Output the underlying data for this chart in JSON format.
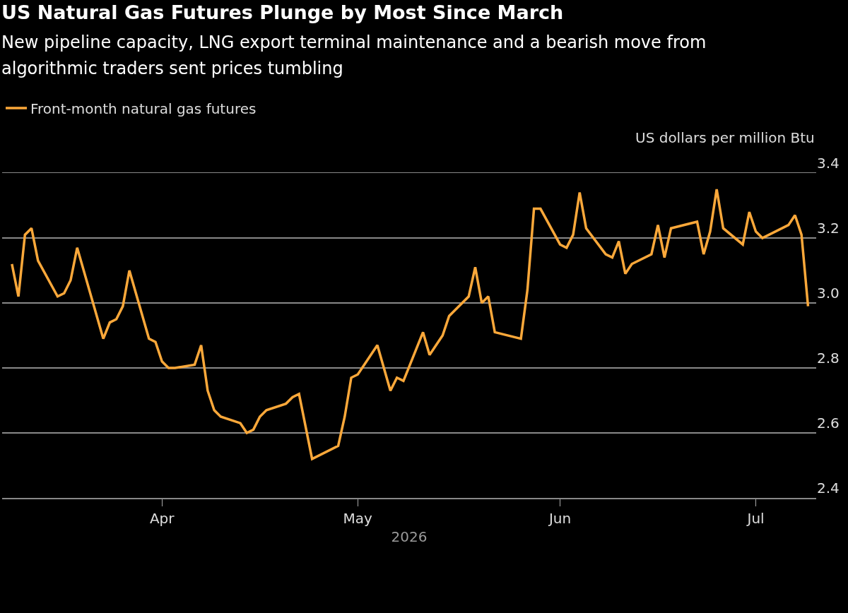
{
  "chart_data": {
    "type": "line",
    "title": "US Natural Gas Futures Plunge by Most Since March",
    "subtitle": "New pipeline capacity, LNG export terminal maintenance and a bearish move from algorithmic traders sent prices tumbling",
    "xlabel": "2026",
    "ylabel": "US dollars per million Btu",
    "x": [
      "2026-03-09",
      "2026-03-10",
      "2026-03-11",
      "2026-03-12",
      "2026-03-13",
      "2026-03-16",
      "2026-03-17",
      "2026-03-18",
      "2026-03-19",
      "2026-03-23",
      "2026-03-24",
      "2026-03-25",
      "2026-03-26",
      "2026-03-27",
      "2026-03-30",
      "2026-03-31",
      "2026-04-01",
      "2026-04-02",
      "2026-04-03",
      "2026-04-06",
      "2026-04-07",
      "2026-04-08",
      "2026-04-09",
      "2026-04-10",
      "2026-04-13",
      "2026-04-14",
      "2026-04-15",
      "2026-04-16",
      "2026-04-17",
      "2026-04-20",
      "2026-04-21",
      "2026-04-22",
      "2026-04-24",
      "2026-04-28",
      "2026-04-29",
      "2026-04-30",
      "2026-05-01",
      "2026-05-04",
      "2026-05-05",
      "2026-05-06",
      "2026-05-07",
      "2026-05-08",
      "2026-05-11",
      "2026-05-12",
      "2026-05-13",
      "2026-05-14",
      "2026-05-15",
      "2026-05-18",
      "2026-05-19",
      "2026-05-20",
      "2026-05-21",
      "2026-05-22",
      "2026-05-26",
      "2026-05-27",
      "2026-05-28",
      "2026-05-29",
      "2026-06-01",
      "2026-06-02",
      "2026-06-03",
      "2026-06-04",
      "2026-06-05",
      "2026-06-08",
      "2026-06-09",
      "2026-06-10",
      "2026-06-11",
      "2026-06-12",
      "2026-06-15",
      "2026-06-16",
      "2026-06-17",
      "2026-06-18",
      "2026-06-22",
      "2026-06-23",
      "2026-06-24",
      "2026-06-25",
      "2026-06-26",
      "2026-06-29",
      "2026-06-30",
      "2026-07-01",
      "2026-07-02",
      "2026-07-06",
      "2026-07-07",
      "2026-07-08",
      "2026-07-09"
    ],
    "series": [
      {
        "name": "Front-month natural gas futures",
        "color": "#fba83a",
        "values": [
          3.12,
          3.02,
          3.21,
          3.23,
          3.13,
          3.02,
          3.03,
          3.07,
          3.17,
          2.89,
          2.94,
          2.95,
          2.99,
          3.1,
          2.89,
          2.88,
          2.82,
          2.8,
          2.8,
          2.81,
          2.87,
          2.73,
          2.67,
          2.65,
          2.63,
          2.6,
          2.61,
          2.65,
          2.67,
          2.69,
          2.71,
          2.72,
          2.52,
          2.56,
          2.65,
          2.77,
          2.78,
          2.87,
          2.8,
          2.73,
          2.77,
          2.76,
          2.91,
          2.84,
          2.87,
          2.9,
          2.96,
          3.02,
          3.11,
          3.0,
          3.02,
          2.91,
          2.89,
          3.04,
          3.29,
          3.29,
          3.18,
          3.17,
          3.21,
          3.34,
          3.23,
          3.15,
          3.14,
          3.19,
          3.09,
          3.12,
          3.15,
          3.24,
          3.14,
          3.23,
          3.25,
          3.15,
          3.22,
          3.35,
          3.23,
          3.18,
          3.28,
          3.22,
          3.2,
          3.24,
          3.27,
          3.21,
          2.99
        ]
      }
    ],
    "xlim": [
      "2026-03-07T12:00",
      "2026-07-10T06:00"
    ],
    "xticks": [
      {
        "value": "2026-04-01",
        "label": "Apr"
      },
      {
        "value": "2026-05-01",
        "label": "May"
      },
      {
        "value": "2026-06-01",
        "label": "Jun"
      },
      {
        "value": "2026-07-01",
        "label": "Jul"
      }
    ],
    "ylim": [
      2.4,
      3.4
    ],
    "yticks": [
      {
        "value": 2.4,
        "label": "2.4"
      },
      {
        "value": 2.6,
        "label": "2.6"
      },
      {
        "value": 2.8,
        "label": "2.8"
      },
      {
        "value": 3.0,
        "label": "3.0"
      },
      {
        "value": 3.2,
        "label": "3.2"
      },
      {
        "value": 3.4,
        "label": "3.4"
      }
    ],
    "grid": "y",
    "legend": "top left",
    "line_style": "solid",
    "marker": "none"
  }
}
